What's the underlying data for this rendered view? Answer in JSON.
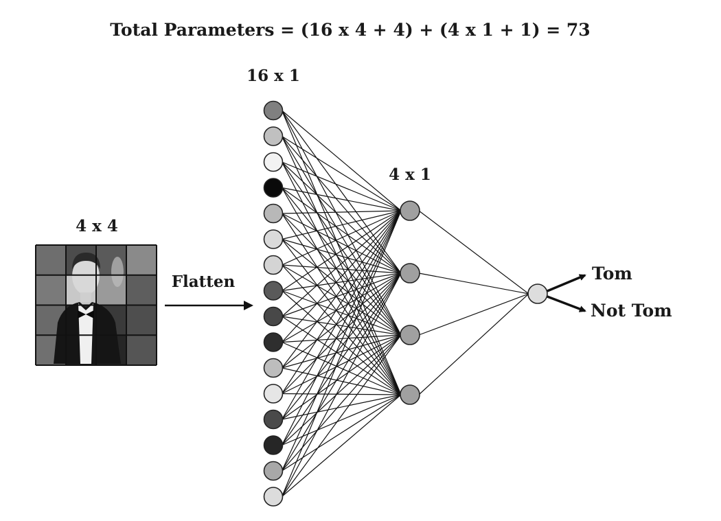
{
  "title": "Total Parameters = (16 x 4 + 4) + (4 x 1 + 1) = 73",
  "input": {
    "label": "4 x 4",
    "grid_rows": 4,
    "grid_cols": 4,
    "pixel_shades": [
      "#6e6e6e",
      "#4c4c4c",
      "#5a5a5a",
      "#8a8a8a",
      "#7a7a7a",
      "#c8c8c8",
      "#9a9a9a",
      "#5e5e5e",
      "#6a6a6a",
      "#2a2a2a",
      "#3a3a3a",
      "#4e4e4e",
      "#707070",
      "#1e1e1e",
      "#262626",
      "#555555"
    ]
  },
  "flatten_label": "Flatten",
  "layer1": {
    "label": "16 x 1",
    "node_fills": [
      "#808080",
      "#c0c0c0",
      "#f2f2f2",
      "#0a0a0a",
      "#b8b8b8",
      "#dadada",
      "#d4d4d4",
      "#5a5a5a",
      "#484848",
      "#2e2e2e",
      "#bdbdbd",
      "#e6e6e6",
      "#4a4a4a",
      "#262626",
      "#a8a8a8",
      "#dcdcdc"
    ]
  },
  "layer2": {
    "label": "4 x 1",
    "node_fills": [
      "#a0a0a0",
      "#a0a0a0",
      "#a0a0a0",
      "#a0a0a0"
    ]
  },
  "output": {
    "node_fill": "#dddddd",
    "labels": [
      "Tom",
      "Not Tom"
    ]
  }
}
